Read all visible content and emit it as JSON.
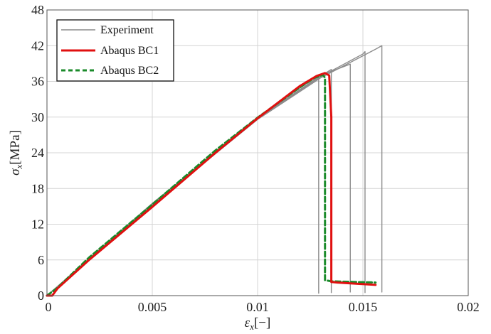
{
  "chart_data": {
    "type": "line",
    "xlabel": {
      "symbol": "ε",
      "sub": "x",
      "unit": "[−]"
    },
    "ylabel": {
      "symbol": "σ",
      "sub": "x",
      "unit": "[MPa]"
    },
    "xlim": [
      0,
      0.02
    ],
    "ylim": [
      0,
      48
    ],
    "xticks": [
      0,
      0.005,
      0.01,
      0.015,
      0.02
    ],
    "xtick_labels": [
      "0",
      "0.005",
      "0.01",
      "0.015",
      "0.02"
    ],
    "yticks": [
      0,
      6,
      12,
      18,
      24,
      30,
      36,
      42,
      48
    ],
    "ytick_labels": [
      "0",
      "6",
      "12",
      "18",
      "24",
      "30",
      "36",
      "42",
      "48"
    ],
    "grid": true,
    "legend": "top-left",
    "series": [
      {
        "name": "Experiment",
        "color": "#8c8c8c",
        "style": "solid",
        "x": [
          0,
          0.005,
          0.01,
          0.0128,
          0.0129,
          0.0129
        ],
        "y": [
          0,
          15.3,
          30.0,
          36.8,
          37.0,
          0.4
        ]
      },
      {
        "name": "Experiment",
        "color": "#8c8c8c",
        "style": "solid",
        "x": [
          0,
          0.005,
          0.01,
          0.013,
          0.0144,
          0.0144
        ],
        "y": [
          0,
          15.5,
          29.8,
          37.0,
          38.9,
          0.6
        ]
      },
      {
        "name": "Experiment",
        "color": "#8c8c8c",
        "style": "solid",
        "x": [
          0,
          0.005,
          0.01,
          0.013,
          0.015,
          0.0151,
          0.0151
        ],
        "y": [
          0,
          15.4,
          29.7,
          36.8,
          40.6,
          41.0,
          0.5
        ]
      },
      {
        "name": "Experiment",
        "color": "#8c8c8c",
        "style": "solid",
        "x": [
          0,
          0.005,
          0.01,
          0.013,
          0.0156,
          0.0159,
          0.0159
        ],
        "y": [
          0,
          15.2,
          29.6,
          36.6,
          41.4,
          42.0,
          0.6
        ]
      },
      {
        "name": "Experiment",
        "color": "#8c8c8c",
        "style": "solid",
        "x": [
          0,
          0.005,
          0.01,
          0.013,
          0.0135,
          0.0135
        ],
        "y": [
          0,
          15.3,
          29.9,
          36.9,
          38.0,
          0.5
        ]
      },
      {
        "name": "Abaqus BC1",
        "color": "#e01010",
        "style": "solid",
        "x": [
          0,
          0.00025,
          0.0005,
          0.002,
          0.005,
          0.008,
          0.01,
          0.012,
          0.0128,
          0.0132,
          0.0134,
          0.0135,
          0.0135,
          0.0138,
          0.0156
        ],
        "y": [
          0,
          0.0,
          1.2,
          6.0,
          14.9,
          24.0,
          29.8,
          35.2,
          36.9,
          37.4,
          37.0,
          30.0,
          2.3,
          2.2,
          1.8
        ]
      },
      {
        "name": "Abaqus BC2",
        "color": "#1a8a2a",
        "style": "dashed",
        "x": [
          0,
          0.0005,
          0.002,
          0.005,
          0.008,
          0.01,
          0.012,
          0.0127,
          0.0131,
          0.0132,
          0.0132,
          0.0135,
          0.0156
        ],
        "y": [
          0,
          1.3,
          6.4,
          15.3,
          24.4,
          29.9,
          35.0,
          36.6,
          37.1,
          36.6,
          2.6,
          2.4,
          2.2
        ]
      }
    ]
  }
}
